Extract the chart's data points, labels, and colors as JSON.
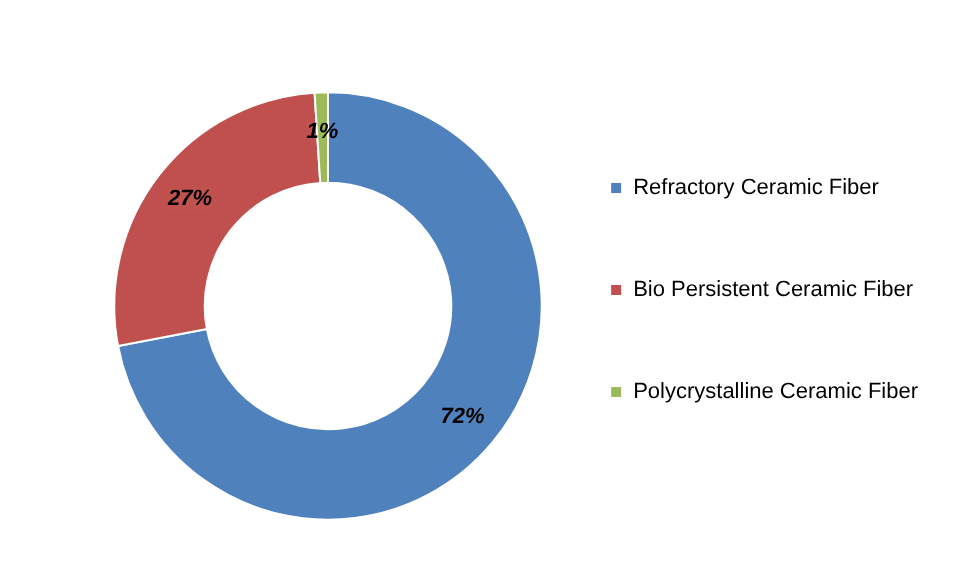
{
  "chart_data": {
    "type": "donut",
    "categories": [
      "Refractory Ceramic Fiber",
      "Bio Persistent Ceramic Fiber",
      "Polycrystalline Ceramic Fiber"
    ],
    "values": [
      72,
      27,
      1
    ],
    "colors": [
      "#4f81bd",
      "#c0504d",
      "#9bbb59"
    ],
    "value_labels": [
      "72%",
      "27%",
      "1%"
    ],
    "legend": "right"
  }
}
